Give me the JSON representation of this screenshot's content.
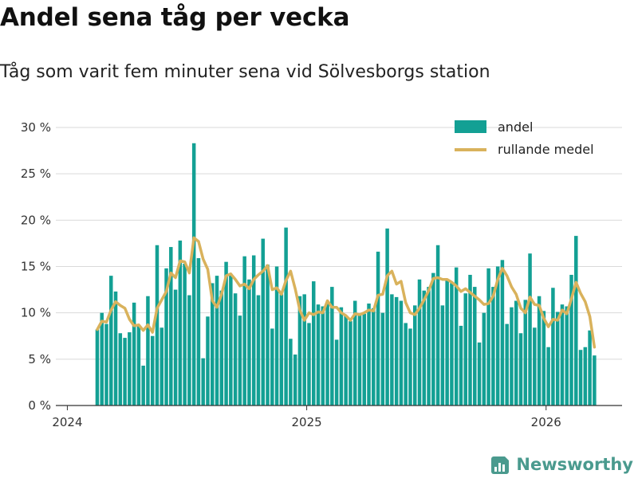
{
  "title": "Andel sena tåg per vecka",
  "subtitle": "Tåg som varit fem minuter sena vid Sölvesborgs station",
  "brand": {
    "name": "Newsworthy",
    "color": "#4a9a8e",
    "icon": "bar-chart-logo-icon"
  },
  "colors": {
    "bars": "#13a094",
    "line": "#d9b25c",
    "axis": "#333333",
    "grid": "#d9d9d9"
  },
  "chart_data": {
    "type": "bar",
    "title": "Andel sena tåg per vecka",
    "subtitle": "Tåg som varit fem minuter sena vid Sölvesborgs station",
    "xlabel": "",
    "ylabel": "",
    "ylim": [
      0,
      30
    ],
    "yticks": [
      0,
      5,
      10,
      15,
      20,
      25,
      30
    ],
    "ytick_labels": [
      "0 %",
      "5 %",
      "10 %",
      "15 %",
      "20 %",
      "25 %",
      "30 %"
    ],
    "xtick_labels": [
      "2024",
      "2025",
      "2026"
    ],
    "xtick_week_index": [
      -6.5,
      45.5,
      97.5
    ],
    "xlim_weeks": [
      -9,
      114
    ],
    "week_start": "2024-W06",
    "legend": {
      "position": "top-right",
      "bar_label": "andel",
      "line_label": "rullande medel"
    },
    "series": [
      {
        "name": "andel",
        "kind": "bar",
        "values": [
          8.2,
          10.0,
          8.8,
          14.0,
          12.3,
          7.8,
          7.3,
          7.9,
          11.1,
          8.6,
          4.3,
          11.8,
          7.5,
          17.3,
          8.4,
          14.8,
          17.1,
          12.5,
          17.8,
          15.3,
          11.9,
          28.3,
          15.9,
          5.1,
          9.6,
          13.2,
          14.0,
          12.4,
          15.5,
          14.2,
          12.1,
          9.7,
          16.1,
          13.6,
          16.2,
          11.9,
          18.0,
          15.2,
          8.3,
          15.0,
          12.0,
          19.2,
          7.2,
          5.5,
          11.8,
          12.0,
          8.9,
          13.4,
          10.9,
          10.7,
          11.1,
          12.8,
          7.1,
          10.6,
          9.7,
          9.1,
          11.3,
          9.9,
          9.9,
          11.0,
          10.5,
          16.6,
          10.0,
          19.1,
          12.0,
          11.7,
          11.3,
          8.9,
          8.3,
          10.8,
          13.6,
          12.4,
          12.8,
          14.3,
          17.3,
          10.8,
          13.6,
          13.2,
          14.9,
          8.6,
          12.1,
          14.1,
          12.8,
          6.8,
          10.0,
          14.8,
          12.8,
          15.0,
          15.7,
          8.8,
          10.6,
          11.3,
          7.8,
          11.4,
          16.4,
          8.4,
          11.8,
          10.2,
          6.3,
          12.7,
          10.1,
          10.9,
          10.7,
          14.1,
          18.3,
          6.0,
          6.3,
          8.1,
          5.4
        ]
      },
      {
        "name": "rullande medel",
        "kind": "line",
        "values": [
          8.2,
          9.1,
          9.0,
          10.3,
          11.2,
          10.8,
          10.5,
          9.3,
          8.6,
          8.7,
          8.1,
          8.7,
          7.9,
          10.5,
          11.4,
          12.3,
          14.3,
          13.8,
          15.6,
          15.5,
          14.3,
          18.1,
          17.7,
          15.8,
          14.7,
          11.3,
          10.6,
          12.0,
          14.0,
          14.2,
          13.6,
          12.9,
          13.1,
          12.6,
          13.6,
          14.1,
          14.5,
          15.1,
          12.5,
          12.7,
          12.0,
          13.5,
          14.5,
          12.6,
          10.3,
          9.2,
          10.0,
          9.8,
          10.1,
          10.0,
          11.3,
          10.6,
          10.6,
          10.0,
          9.7,
          9.2,
          9.9,
          9.8,
          10.0,
          10.3,
          10.2,
          11.9,
          12.0,
          14.0,
          14.5,
          13.1,
          13.4,
          11.1,
          10.0,
          9.8,
          10.5,
          11.4,
          12.4,
          13.7,
          13.8,
          13.6,
          13.6,
          13.3,
          12.9,
          12.3,
          12.6,
          12.2,
          11.8,
          11.4,
          10.9,
          11.0,
          11.8,
          13.6,
          14.8,
          14.0,
          12.8,
          12.0,
          10.5,
          10.0,
          11.7,
          10.9,
          10.8,
          9.4,
          8.5,
          9.3,
          9.2,
          10.3,
          9.9,
          11.5,
          13.3,
          12.1,
          11.2,
          9.6,
          6.3
        ]
      }
    ]
  }
}
